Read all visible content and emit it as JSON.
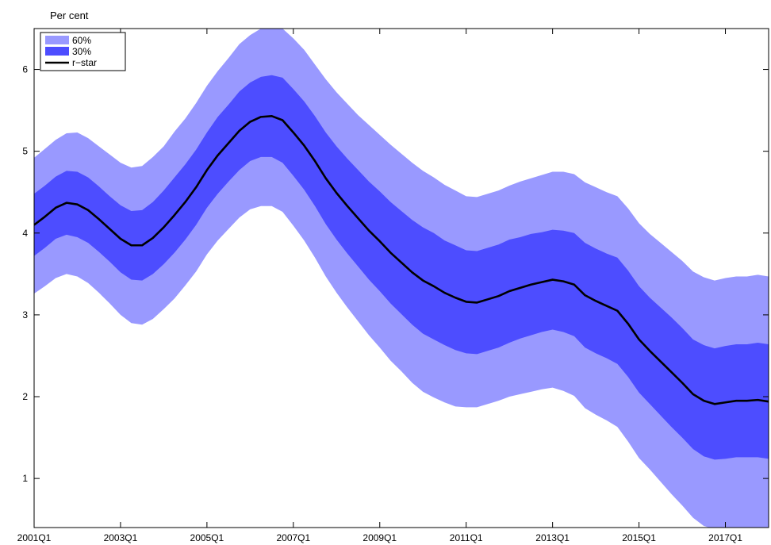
{
  "chart_data": {
    "type": "area",
    "title": "",
    "xlabel": "",
    "ylabel": "Per cent",
    "xlim": [
      2001.0,
      2018.0
    ],
    "ylim": [
      0.4,
      6.5
    ],
    "x_ticks": [
      "2001Q1",
      "2003Q1",
      "2005Q1",
      "2007Q1",
      "2009Q1",
      "2011Q1",
      "2013Q1",
      "2015Q1",
      "2017Q1"
    ],
    "y_ticks": [
      1,
      2,
      3,
      4,
      5,
      6
    ],
    "grid": false,
    "legend_position": "top-left",
    "legend": [
      "60%",
      "30%",
      "r−star"
    ],
    "colors": {
      "band_60": "#9999ff",
      "band_30": "#4d4dff",
      "line": "#000000",
      "axis": "#000000"
    },
    "x": [
      2001.0,
      2001.25,
      2001.5,
      2001.75,
      2002.0,
      2002.25,
      2002.5,
      2002.75,
      2003.0,
      2003.25,
      2003.5,
      2003.75,
      2004.0,
      2004.25,
      2004.5,
      2004.75,
      2005.0,
      2005.25,
      2005.5,
      2005.75,
      2006.0,
      2006.25,
      2006.5,
      2006.75,
      2007.0,
      2007.25,
      2007.5,
      2007.75,
      2008.0,
      2008.25,
      2008.5,
      2008.75,
      2009.0,
      2009.25,
      2009.5,
      2009.75,
      2010.0,
      2010.25,
      2010.5,
      2010.75,
      2011.0,
      2011.25,
      2011.5,
      2011.75,
      2012.0,
      2012.25,
      2012.5,
      2012.75,
      2013.0,
      2013.25,
      2013.5,
      2013.75,
      2014.0,
      2014.25,
      2014.5,
      2014.75,
      2015.0,
      2015.25,
      2015.5,
      2015.75,
      2016.0,
      2016.25,
      2016.5,
      2016.75,
      2017.0,
      2017.25,
      2017.5,
      2017.75,
      2018.0
    ],
    "series": [
      {
        "name": "r−star",
        "values": [
          4.1,
          4.2,
          4.31,
          4.37,
          4.35,
          4.28,
          4.17,
          4.05,
          3.93,
          3.85,
          3.85,
          3.94,
          4.07,
          4.22,
          4.38,
          4.56,
          4.77,
          4.95,
          5.1,
          5.25,
          5.36,
          5.42,
          5.43,
          5.38,
          5.23,
          5.07,
          4.88,
          4.67,
          4.49,
          4.33,
          4.18,
          4.03,
          3.9,
          3.76,
          3.64,
          3.52,
          3.42,
          3.35,
          3.27,
          3.21,
          3.16,
          3.15,
          3.19,
          3.23,
          3.29,
          3.33,
          3.37,
          3.4,
          3.43,
          3.41,
          3.37,
          3.24,
          3.17,
          3.11,
          3.05,
          2.89,
          2.7,
          2.56,
          2.43,
          2.3,
          2.17,
          2.03,
          1.95,
          1.91,
          1.93,
          1.95,
          1.95,
          1.96,
          1.94
        ]
      },
      {
        "name": "30%",
        "lower": [
          3.72,
          3.82,
          3.93,
          3.98,
          3.95,
          3.88,
          3.77,
          3.65,
          3.52,
          3.43,
          3.42,
          3.5,
          3.62,
          3.76,
          3.92,
          4.1,
          4.31,
          4.48,
          4.63,
          4.77,
          4.88,
          4.93,
          4.93,
          4.86,
          4.7,
          4.53,
          4.33,
          4.11,
          3.92,
          3.75,
          3.59,
          3.43,
          3.29,
          3.14,
          3.01,
          2.88,
          2.77,
          2.7,
          2.63,
          2.57,
          2.53,
          2.52,
          2.56,
          2.6,
          2.66,
          2.71,
          2.75,
          2.79,
          2.82,
          2.79,
          2.74,
          2.6,
          2.53,
          2.47,
          2.4,
          2.24,
          2.05,
          1.91,
          1.77,
          1.63,
          1.5,
          1.36,
          1.27,
          1.23,
          1.24,
          1.26,
          1.26,
          1.26,
          1.24
        ],
        "upper": [
          4.48,
          4.58,
          4.69,
          4.76,
          4.75,
          4.68,
          4.57,
          4.45,
          4.34,
          4.27,
          4.28,
          4.38,
          4.52,
          4.68,
          4.84,
          5.02,
          5.23,
          5.42,
          5.57,
          5.73,
          5.84,
          5.91,
          5.93,
          5.9,
          5.76,
          5.61,
          5.43,
          5.23,
          5.06,
          4.91,
          4.77,
          4.63,
          4.51,
          4.38,
          4.27,
          4.16,
          4.07,
          4.0,
          3.91,
          3.85,
          3.79,
          3.78,
          3.82,
          3.86,
          3.92,
          3.95,
          3.99,
          4.01,
          4.04,
          4.03,
          4.0,
          3.88,
          3.81,
          3.75,
          3.7,
          3.54,
          3.35,
          3.21,
          3.09,
          2.97,
          2.84,
          2.7,
          2.63,
          2.59,
          2.62,
          2.64,
          2.64,
          2.66,
          2.64
        ]
      },
      {
        "name": "60%",
        "lower": [
          3.26,
          3.35,
          3.45,
          3.5,
          3.47,
          3.39,
          3.27,
          3.14,
          3.0,
          2.9,
          2.88,
          2.95,
          3.07,
          3.2,
          3.36,
          3.53,
          3.74,
          3.91,
          4.05,
          4.19,
          4.29,
          4.33,
          4.33,
          4.26,
          4.09,
          3.91,
          3.7,
          3.47,
          3.27,
          3.09,
          2.92,
          2.75,
          2.6,
          2.44,
          2.31,
          2.17,
          2.06,
          1.99,
          1.93,
          1.88,
          1.87,
          1.87,
          1.91,
          1.95,
          2.0,
          2.03,
          2.06,
          2.09,
          2.11,
          2.07,
          2.01,
          1.86,
          1.78,
          1.71,
          1.63,
          1.45,
          1.25,
          1.11,
          0.96,
          0.81,
          0.67,
          0.52,
          0.42,
          0.38,
          0.39,
          0.4,
          0.39,
          0.39,
          0.37
        ],
        "upper": [
          4.92,
          5.03,
          5.14,
          5.22,
          5.23,
          5.16,
          5.06,
          4.96,
          4.86,
          4.8,
          4.82,
          4.93,
          5.06,
          5.24,
          5.4,
          5.59,
          5.8,
          5.98,
          6.14,
          6.31,
          6.42,
          6.5,
          6.52,
          6.5,
          6.38,
          6.24,
          6.06,
          5.88,
          5.72,
          5.58,
          5.44,
          5.32,
          5.2,
          5.08,
          4.97,
          4.86,
          4.76,
          4.68,
          4.59,
          4.52,
          4.45,
          4.44,
          4.48,
          4.52,
          4.58,
          4.63,
          4.67,
          4.71,
          4.75,
          4.75,
          4.72,
          4.62,
          4.56,
          4.5,
          4.45,
          4.3,
          4.12,
          3.99,
          3.88,
          3.77,
          3.66,
          3.53,
          3.46,
          3.42,
          3.45,
          3.47,
          3.47,
          3.49,
          3.47
        ]
      }
    ]
  }
}
